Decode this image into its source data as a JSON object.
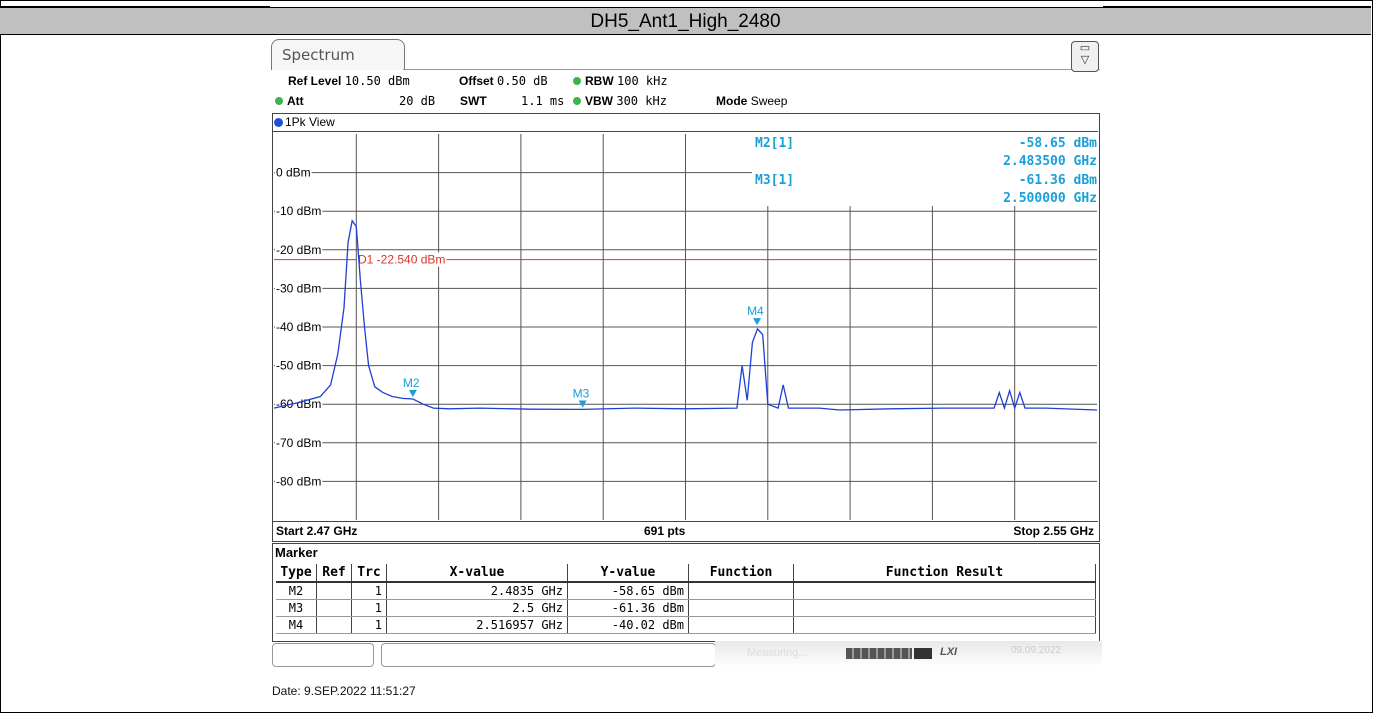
{
  "report_title": "DH5_Ant1_High_2480",
  "tab_label": "Spectrum",
  "header": {
    "ref_level_label": "Ref Level",
    "ref_level_value": "10.50 dBm",
    "offset_label": "Offset",
    "offset_value": "0.50 dB",
    "rbw_label": "RBW",
    "rbw_value": "100 kHz",
    "att_label": "Att",
    "att_value": "20 dB",
    "swt_label": "SWT",
    "swt_value": "1.1 ms",
    "vbw_label": "VBW",
    "vbw_value": "300 kHz",
    "mode_label": "Mode",
    "mode_value": "Sweep"
  },
  "view_label": "1Pk View",
  "marker_readout": {
    "m2_label": "M2[1]",
    "m2_level": "-58.65 dBm",
    "m2_freq": "2.483500 GHz",
    "m3_label": "M3[1]",
    "m3_level": "-61.36 dBm",
    "m3_freq": "2.500000 GHz"
  },
  "display_line_label": "D1 -22.540 dBm",
  "status": {
    "start": "Start 2.47 GHz",
    "points": "691 pts",
    "stop": "Stop 2.55 GHz"
  },
  "colors": {
    "trace": "#1e3fd8",
    "display_line": "#d9342b",
    "marker": "#1a9fd8",
    "grid": "#555555"
  },
  "chart_data": {
    "type": "line",
    "xlim": [
      2.47,
      2.55
    ],
    "ylim": [
      -90,
      10
    ],
    "yticks": [
      0,
      -10,
      -20,
      -30,
      -40,
      -50,
      -60,
      -70,
      -80
    ],
    "ytick_labels": [
      "0 dBm",
      "-10 dBm",
      "-20 dBm",
      "-30 dBm",
      "-40 dBm",
      "-50 dBm",
      "-60 dBm",
      "-70 dBm",
      "-80 dBm"
    ],
    "display_line": -22.54,
    "series": [
      {
        "x": [
          2.47,
          2.4725,
          2.4745,
          2.4755,
          2.4762,
          2.4768,
          2.4772,
          2.4776,
          2.478,
          2.4784,
          2.4788,
          2.4792,
          2.4798,
          2.4806,
          2.4815,
          2.4825,
          2.4835,
          2.4845,
          2.4855,
          2.487,
          2.49,
          2.495,
          2.5,
          2.505,
          2.51,
          2.515,
          2.5155,
          2.516,
          2.5165,
          2.517,
          2.5175,
          2.518,
          2.519,
          2.5195,
          2.52,
          2.523,
          2.525,
          2.53,
          2.535,
          2.54,
          2.5405,
          2.541,
          2.5415,
          2.542,
          2.5425,
          2.543,
          2.545,
          2.55
        ],
        "y": [
          -61,
          -59.5,
          -58,
          -55,
          -47,
          -35,
          -18,
          -12.5,
          -14,
          -28,
          -40,
          -50,
          -55.5,
          -57,
          -58,
          -58.5,
          -58.65,
          -60,
          -61,
          -61.2,
          -61,
          -61.3,
          -61.36,
          -61,
          -61.2,
          -61,
          -50,
          -59,
          -44,
          -40.5,
          -42,
          -60,
          -61,
          -55,
          -61,
          -61,
          -61.5,
          -61.2,
          -61,
          -61,
          -57,
          -61,
          -56.5,
          -61,
          -57,
          -61,
          -61,
          -61.5
        ]
      }
    ],
    "markers": [
      {
        "name": "M2",
        "x": 2.4835,
        "y": -58.65
      },
      {
        "name": "M3",
        "x": 2.5,
        "y": -61.36
      },
      {
        "name": "M4",
        "x": 2.516957,
        "y": -40.02
      }
    ]
  },
  "marker_table": {
    "title": "Marker",
    "columns": [
      "Type",
      "Ref",
      "Trc",
      "X-value",
      "Y-value",
      "Function",
      "Function Result"
    ],
    "rows": [
      [
        "M2",
        "",
        "1",
        "2.4835 GHz",
        "-58.65 dBm",
        "",
        ""
      ],
      [
        "M3",
        "",
        "1",
        "2.5 GHz",
        "-61.36 dBm",
        "",
        ""
      ],
      [
        "M4",
        "",
        "1",
        "2.516957 GHz",
        "-40.02 dBm",
        "",
        ""
      ]
    ]
  },
  "status_bar": {
    "measuring": "Measuring...",
    "lx": "LXI",
    "date": "09.09.2022"
  },
  "footer_date": "Date: 9.SEP.2022  11:51:27"
}
